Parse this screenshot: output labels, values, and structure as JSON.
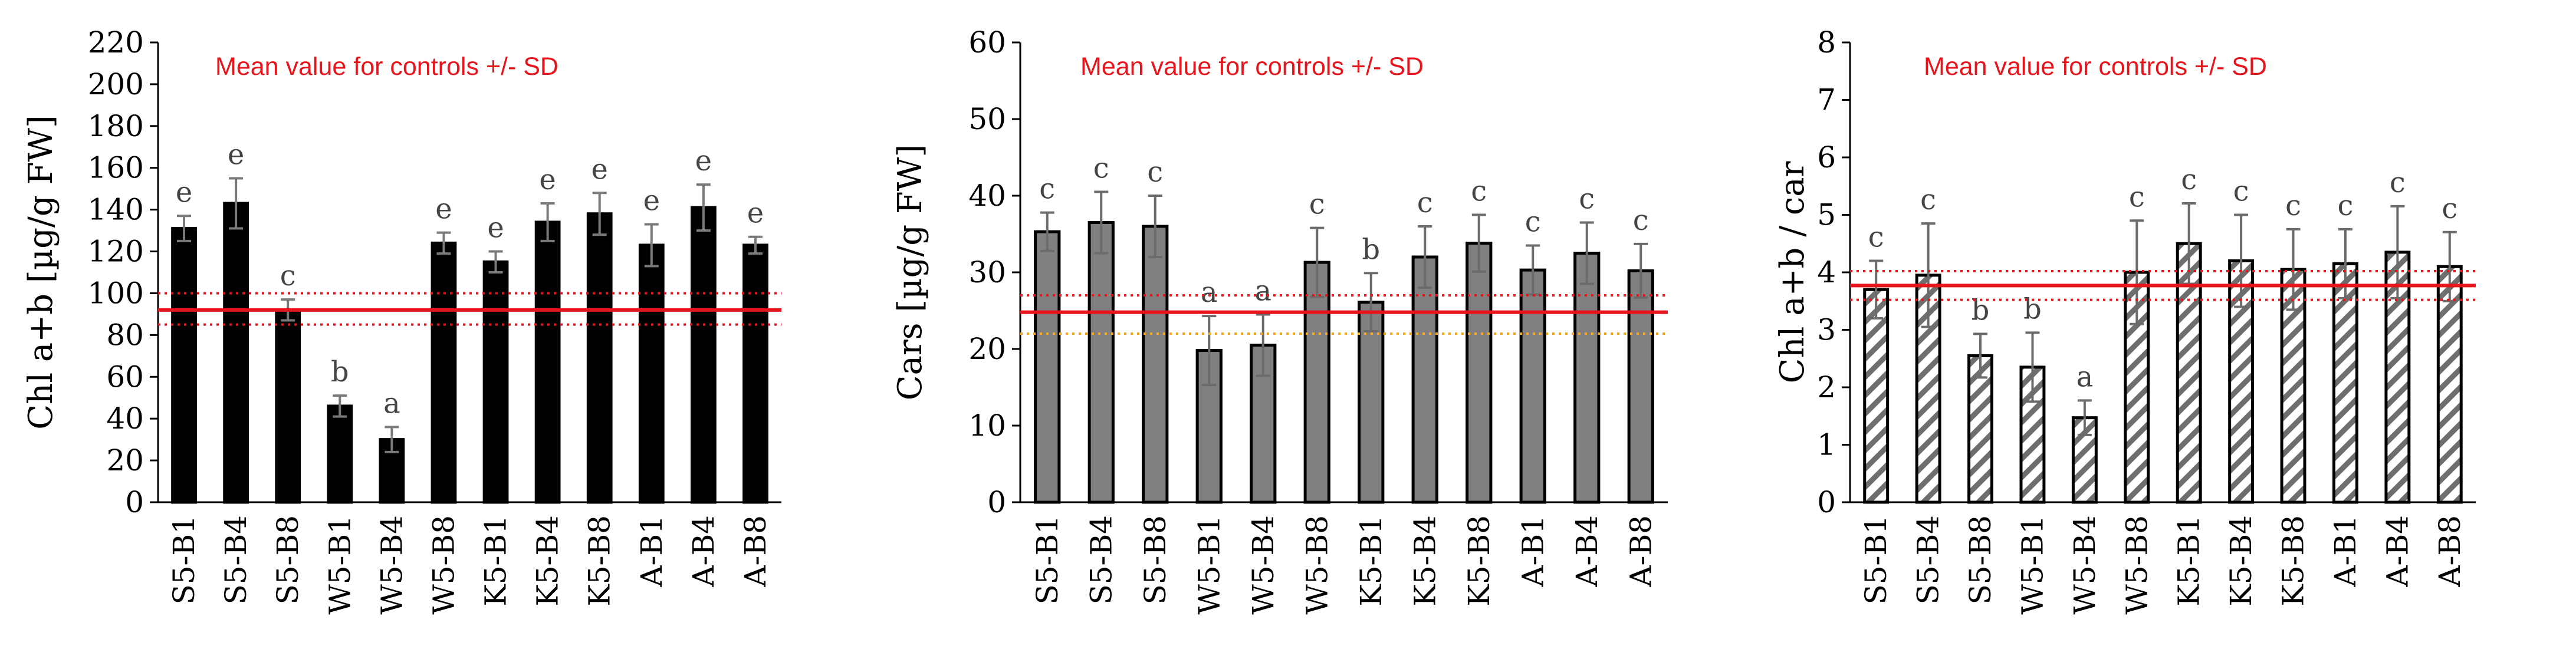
{
  "chart_data": [
    {
      "type": "bar",
      "ylabel": "Chl a+b [µg/g FW]",
      "ylim": [
        0,
        220
      ],
      "yticks": [
        0,
        20,
        40,
        60,
        80,
        100,
        120,
        140,
        160,
        180,
        200,
        220
      ],
      "categories": [
        "S5-B1",
        "S5-B4",
        "S5-B8",
        "W5-B1",
        "W5-B4",
        "W5-B8",
        "K5-B1",
        "K5-B4",
        "K5-B8",
        "A-B1",
        "A-B4",
        "A-B8"
      ],
      "values": [
        131,
        143,
        92,
        46,
        30,
        124,
        115,
        134,
        138,
        123,
        141,
        123
      ],
      "errors": [
        6,
        12,
        5,
        5,
        6,
        5,
        5,
        9,
        10,
        10,
        11,
        4
      ],
      "letters": [
        "e",
        "e",
        "c",
        "b",
        "a",
        "e",
        "e",
        "e",
        "e",
        "e",
        "e",
        "e"
      ],
      "bar_style": "black",
      "annotation": "Mean value for controls +/- SD",
      "control": {
        "mean": 92,
        "lower": 85,
        "upper": 100,
        "lower_color": "#e8141c"
      }
    },
    {
      "type": "bar",
      "ylabel": "Cars [µg/g FW]",
      "ylim": [
        0,
        60
      ],
      "yticks": [
        0,
        10,
        20,
        30,
        40,
        50,
        60
      ],
      "categories": [
        "S5-B1",
        "S5-B4",
        "S5-B8",
        "W5-B1",
        "W5-B4",
        "W5-B8",
        "K5-B1",
        "K5-B4",
        "K5-B8",
        "A-B1",
        "A-B4",
        "A-B8"
      ],
      "values": [
        35.3,
        36.5,
        36.0,
        19.8,
        20.5,
        31.3,
        26.1,
        32.0,
        33.8,
        30.3,
        32.5,
        30.2
      ],
      "errors": [
        2.5,
        4.0,
        4.0,
        4.5,
        4.0,
        4.5,
        3.8,
        4.0,
        3.7,
        3.2,
        4.0,
        3.5
      ],
      "letters": [
        "c",
        "c",
        "c",
        "a",
        "a",
        "c",
        "b",
        "c",
        "c",
        "c",
        "c",
        "c"
      ],
      "bar_style": "gray",
      "annotation": "Mean value for controls +/- SD",
      "control": {
        "mean": 24.8,
        "lower": 22.0,
        "upper": 27.0,
        "lower_color": "#f5a623"
      }
    },
    {
      "type": "bar",
      "ylabel": "Chl a+b / car",
      "ylim": [
        0,
        8
      ],
      "yticks": [
        0,
        1,
        2,
        3,
        4,
        5,
        6,
        7,
        8
      ],
      "categories": [
        "S5-B1",
        "S5-B4",
        "S5-B8",
        "W5-B1",
        "W5-B4",
        "W5-B8",
        "K5-B1",
        "K5-B4",
        "K5-B8",
        "A-B1",
        "A-B4",
        "A-B8"
      ],
      "values": [
        3.7,
        3.95,
        2.55,
        2.35,
        1.47,
        4.0,
        4.5,
        4.2,
        4.05,
        4.15,
        4.35,
        4.1
      ],
      "errors": [
        0.5,
        0.9,
        0.38,
        0.6,
        0.3,
        0.9,
        0.7,
        0.8,
        0.7,
        0.6,
        0.8,
        0.6
      ],
      "letters": [
        "c",
        "c",
        "b",
        "b",
        "a",
        "c",
        "c",
        "c",
        "c",
        "c",
        "c",
        "c"
      ],
      "bar_style": "hatched",
      "annotation": "Mean value for controls +/- SD",
      "control": {
        "mean": 3.77,
        "lower": 3.52,
        "upper": 4.02,
        "lower_color": "#e8141c"
      }
    }
  ],
  "colors": {
    "control_line": "#e8141c",
    "annotation": "#e8141c",
    "bar_black": "#000000",
    "bar_gray": "#808080"
  }
}
